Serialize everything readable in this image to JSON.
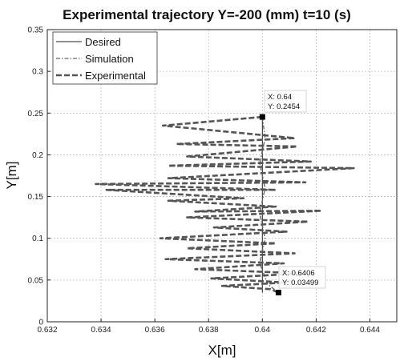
{
  "chart_data": {
    "type": "line",
    "title": "Experimental trajectory Y=-200 (mm) t=10 (s)",
    "xlabel": "X[m]",
    "ylabel": "Y[m]",
    "xlim": [
      0.632,
      0.645
    ],
    "ylim": [
      0,
      0.35
    ],
    "xticks": [
      "0.632",
      "0.634",
      "0.636",
      "0.638",
      "0.64",
      "0.642",
      "0.644"
    ],
    "yticks": [
      "0",
      "0.05",
      "0.1",
      "0.15",
      "0.2",
      "0.25",
      "0.3",
      "0.35"
    ],
    "grid": true,
    "legend_position": "top-left",
    "colors": {
      "desired": "#222222",
      "simulation": "#666666",
      "experimental": "#555555",
      "grid": "#bdbdbd"
    },
    "series": [
      {
        "name": "Desired",
        "style": "solid",
        "points": [
          [
            0.64,
            0.245
          ],
          [
            0.64,
            0.035
          ]
        ]
      },
      {
        "name": "Simulation",
        "style": "dash-dot",
        "points": [
          [
            0.64,
            0.2454
          ],
          [
            0.6401,
            0.22
          ],
          [
            0.6399,
            0.19
          ],
          [
            0.6401,
            0.16
          ],
          [
            0.6399,
            0.13
          ],
          [
            0.6401,
            0.1
          ],
          [
            0.6399,
            0.07
          ],
          [
            0.6402,
            0.045
          ],
          [
            0.6406,
            0.035
          ]
        ]
      },
      {
        "name": "Experimental",
        "style": "dashed",
        "points": [
          [
            0.64,
            0.2454
          ],
          [
            0.6363,
            0.235
          ],
          [
            0.6412,
            0.22
          ],
          [
            0.6368,
            0.213
          ],
          [
            0.6413,
            0.21
          ],
          [
            0.6372,
            0.198
          ],
          [
            0.6418,
            0.192
          ],
          [
            0.6365,
            0.187
          ],
          [
            0.6434,
            0.184
          ],
          [
            0.6365,
            0.172
          ],
          [
            0.6416,
            0.167
          ],
          [
            0.6338,
            0.165
          ],
          [
            0.6405,
            0.158
          ],
          [
            0.6342,
            0.158
          ],
          [
            0.6393,
            0.148
          ],
          [
            0.6365,
            0.145
          ],
          [
            0.6405,
            0.138
          ],
          [
            0.6375,
            0.132
          ],
          [
            0.6422,
            0.133
          ],
          [
            0.6372,
            0.125
          ],
          [
            0.6417,
            0.12
          ],
          [
            0.6382,
            0.113
          ],
          [
            0.6409,
            0.108
          ],
          [
            0.6362,
            0.1
          ],
          [
            0.6405,
            0.094
          ],
          [
            0.6372,
            0.088
          ],
          [
            0.6412,
            0.082
          ],
          [
            0.6364,
            0.075
          ],
          [
            0.6408,
            0.07
          ],
          [
            0.6375,
            0.063
          ],
          [
            0.6415,
            0.058
          ],
          [
            0.6381,
            0.052
          ],
          [
            0.6409,
            0.047
          ],
          [
            0.6385,
            0.043
          ],
          [
            0.6403,
            0.039
          ],
          [
            0.6406,
            0.035
          ]
        ]
      }
    ],
    "datatips": [
      {
        "x_label": "X: 0.64",
        "y_label": "Y: 0.2454",
        "x": 0.64,
        "y": 0.2454
      },
      {
        "x_label": "X: 0.6406",
        "y_label": "Y: 0.03499",
        "x": 0.6406,
        "y": 0.03499
      }
    ]
  }
}
